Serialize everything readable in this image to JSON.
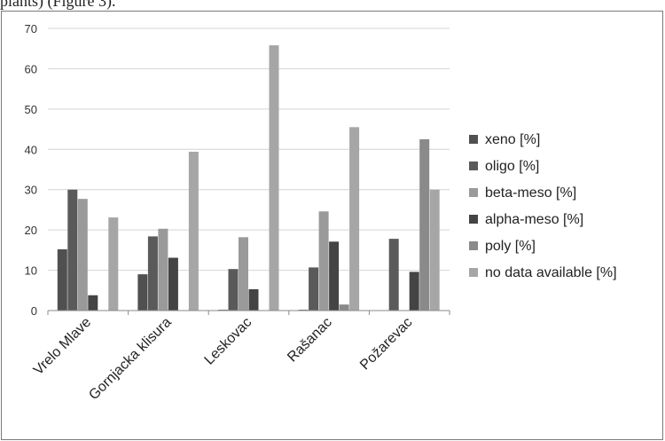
{
  "caption": "plants) (Figure 3).",
  "chart_data": {
    "type": "bar",
    "title": "",
    "xlabel": "",
    "ylabel": "",
    "ylim": [
      0,
      70
    ],
    "yticks": [
      "0",
      "10",
      "20",
      "30",
      "40",
      "50",
      "60",
      "70"
    ],
    "grid": true,
    "legend_position": "right",
    "categories": [
      "Vrelo Mlave",
      "Gornjacka klisura",
      "Leskovac",
      "Rašanac",
      "Požarevac"
    ],
    "series": [
      {
        "name": "xeno [%]",
        "color": "#505050",
        "values": [
          15.2,
          9.0,
          0.2,
          0.2,
          0.0
        ]
      },
      {
        "name": "oligo [%]",
        "color": "#5a5a5a",
        "values": [
          30.0,
          18.4,
          10.3,
          10.7,
          17.8
        ]
      },
      {
        "name": "beta-meso [%]",
        "color": "#9a9a9a",
        "values": [
          27.7,
          20.3,
          18.2,
          24.6,
          0.0
        ]
      },
      {
        "name": "alpha-meso [%]",
        "color": "#444444",
        "values": [
          3.8,
          13.1,
          5.3,
          17.1,
          9.6
        ]
      },
      {
        "name": "poly [%]",
        "color": "#8a8a8a",
        "values": [
          0.0,
          0.0,
          0.0,
          1.5,
          42.5
        ]
      },
      {
        "name": "no data available [%]",
        "color": "#a6a6a6",
        "values": [
          23.1,
          39.4,
          65.8,
          45.5,
          30.0
        ]
      }
    ]
  }
}
